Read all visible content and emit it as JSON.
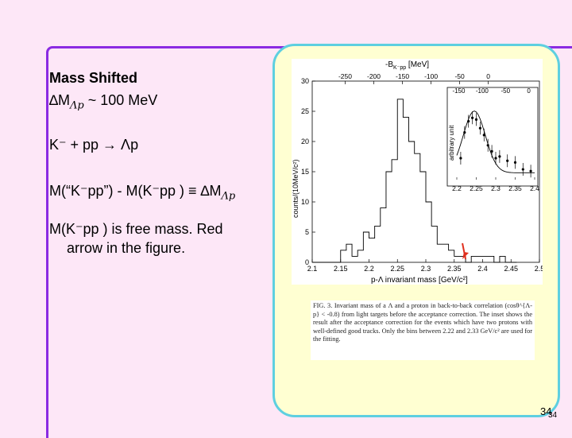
{
  "slide": {
    "title": "Mass Shifted",
    "delta_line": "∆M",
    "delta_sub": "Λp",
    "delta_approx": " ~ 100 MeV",
    "reaction": "K⁻ + pp → Λp",
    "definition": "M(“K⁻pp”) - M(K⁻pp ) ≡ ∆M",
    "definition_sub": "Λp",
    "free_mass_line1": "M(K⁻pp ) is free mass. Red",
    "free_mass_line2": "arrow in the figure.",
    "page_number": "34",
    "page_number_small": "34"
  },
  "figure": {
    "top_axis_label": "-B",
    "top_axis_sub": "K⁻pp",
    "top_axis_unit": " [MeV]",
    "top_ticks": [
      "-250",
      "-200",
      "-150",
      "-100",
      "-50",
      "0"
    ],
    "y_label": "counts/(10MeV/c²)",
    "y_ticks": [
      "0",
      "5",
      "10",
      "15",
      "20",
      "25",
      "30"
    ],
    "x_ticks": [
      "2.1",
      "2.15",
      "2.2",
      "2.25",
      "2.3",
      "2.35",
      "2.4",
      "2.45",
      "2.5"
    ],
    "x_label": "p-Λ invariant mass [GeV/c²]",
    "inset_top_ticks": [
      "-150",
      "-100",
      "-50",
      "0"
    ],
    "inset_y_label": "arbitrary unit",
    "inset_x_ticks": [
      "2.2",
      "2.25",
      "2.3",
      "2.35",
      "2.4"
    ],
    "arrow_color": "#e0301e",
    "caption": "FIG. 3. Invariant mass of a Λ and a proton in back-to-back correlation (cosθ^{Λ-p} < -0.8) from light targets before the acceptance correction. The inset shows the result after the acceptance correction for the events which have two protons with well-defined good tracks. Only the bins between 2.22 and 2.33 GeV/c² are used for the fitting."
  },
  "chart_data": {
    "type": "bar",
    "title": "",
    "xlabel": "p-Λ invariant mass [GeV/c²]",
    "ylabel": "counts/(10MeV/c²)",
    "xlim": [
      2.1,
      2.5
    ],
    "ylim": [
      0,
      30
    ],
    "x": [
      2.105,
      2.115,
      2.125,
      2.135,
      2.145,
      2.155,
      2.165,
      2.175,
      2.185,
      2.195,
      2.205,
      2.215,
      2.225,
      2.235,
      2.245,
      2.255,
      2.265,
      2.275,
      2.285,
      2.295,
      2.305,
      2.315,
      2.325,
      2.335,
      2.345,
      2.355,
      2.365,
      2.375,
      2.385,
      2.395,
      2.405,
      2.415,
      2.425,
      2.435,
      2.445,
      2.455
    ],
    "values": [
      0,
      0,
      0,
      0,
      0,
      2,
      3,
      1,
      2,
      5,
      4,
      6,
      9,
      15,
      17,
      27,
      24,
      20,
      18,
      15,
      10,
      6,
      3,
      3,
      2,
      1,
      1,
      0,
      1,
      1,
      1,
      1,
      0,
      1,
      0,
      0
    ],
    "arrow_x": 2.37
  }
}
